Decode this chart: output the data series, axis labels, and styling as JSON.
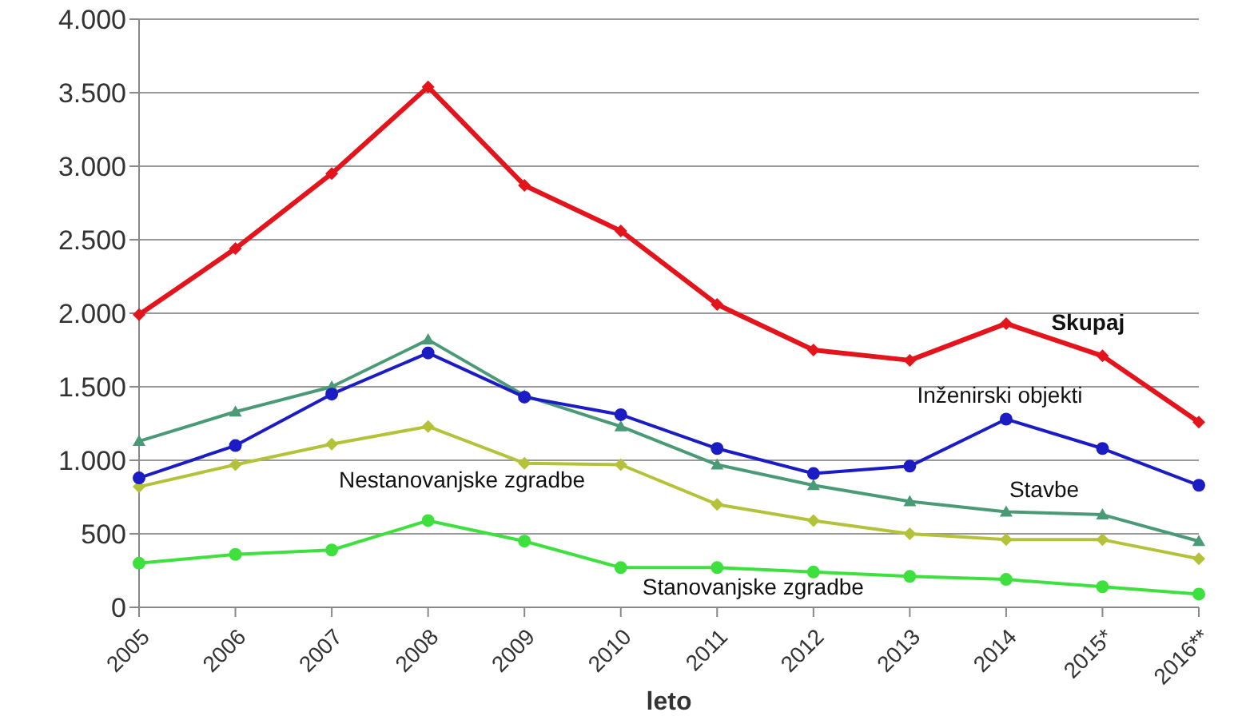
{
  "chart_data": {
    "type": "line",
    "xlabel": "leto",
    "categories": [
      "2005",
      "2006",
      "2007",
      "2008",
      "2009",
      "2010",
      "2011",
      "2012",
      "2013",
      "2014",
      "2015*",
      "2016**"
    ],
    "ylim": [
      0,
      4000
    ],
    "yticks": [
      0,
      {
        "value": 500,
        "label": "500"
      },
      {
        "value": 1000,
        "label": "1.000"
      },
      {
        "value": 1500,
        "label": "1.500"
      },
      {
        "value": 2000,
        "label": "2.000"
      },
      {
        "value": 2500,
        "label": "2.500"
      },
      {
        "value": 3000,
        "label": "3.000"
      },
      {
        "value": 3500,
        "label": "3.500"
      },
      {
        "value": 4000,
        "label": "4.000"
      }
    ],
    "grid": "y",
    "legend": false,
    "line_style": "solid",
    "series": [
      {
        "name": "Skupaj",
        "color": "#e3141b",
        "marker": "diamond",
        "values": [
          1990,
          2440,
          2950,
          3540,
          2870,
          2560,
          2060,
          1750,
          1680,
          1930,
          1710,
          1260
        ]
      },
      {
        "name": "Inženirski objekti",
        "color": "#1c1cc4",
        "marker": "circle",
        "values": [
          880,
          1100,
          1450,
          1730,
          1430,
          1310,
          1080,
          910,
          960,
          1280,
          1080,
          830
        ]
      },
      {
        "name": "Stavbe",
        "color": "#4a9a78",
        "marker": "triangle",
        "values": [
          1130,
          1330,
          1500,
          1820,
          1440,
          1230,
          970,
          830,
          720,
          650,
          630,
          450
        ]
      },
      {
        "name": "Nestanovanjske zgradbe",
        "color": "#b4c23a",
        "marker": "diamond",
        "values": [
          820,
          970,
          1110,
          1230,
          980,
          970,
          700,
          590,
          500,
          460,
          460,
          330
        ]
      },
      {
        "name": "Stanovanjske zgradbe",
        "color": "#3ee03e",
        "marker": "circle",
        "values": [
          300,
          360,
          390,
          590,
          450,
          270,
          270,
          240,
          210,
          190,
          140,
          90
        ]
      }
    ]
  }
}
